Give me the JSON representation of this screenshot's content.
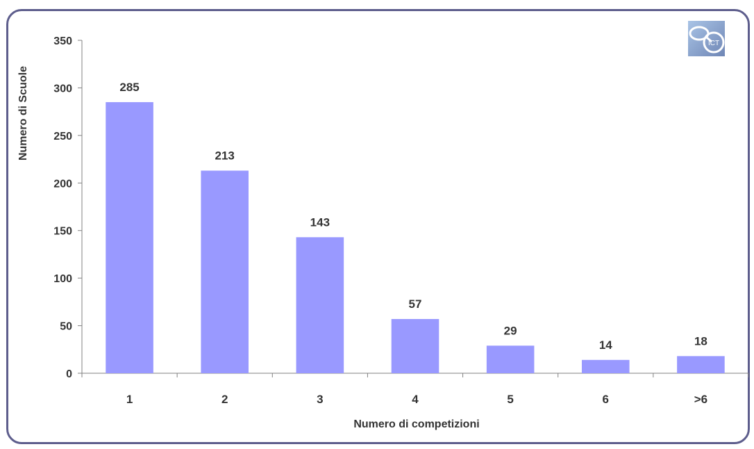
{
  "chart_data": {
    "type": "bar",
    "categories": [
      "1",
      "2",
      "3",
      "4",
      "5",
      "6",
      ">6"
    ],
    "values": [
      285,
      213,
      143,
      57,
      29,
      14,
      18
    ],
    "data_labels": [
      "285",
      "213",
      "143",
      "57",
      "29",
      "14",
      "18"
    ],
    "title": "",
    "xlabel": "Numero di competizioni",
    "ylabel": "Numero di Scuole",
    "ylim": [
      0,
      350
    ],
    "yticks": [
      0,
      50,
      100,
      150,
      200,
      250,
      300,
      350
    ],
    "ytick_labels": [
      "0",
      "50",
      "100",
      "150",
      "200",
      "250",
      "300",
      "350"
    ],
    "grid": false,
    "legend": "none",
    "bar_color": "#9999ff",
    "frame_color": "#5d5d8c"
  },
  "logo": {
    "text": "ICT",
    "icon": "ict-magnifier-logo"
  }
}
